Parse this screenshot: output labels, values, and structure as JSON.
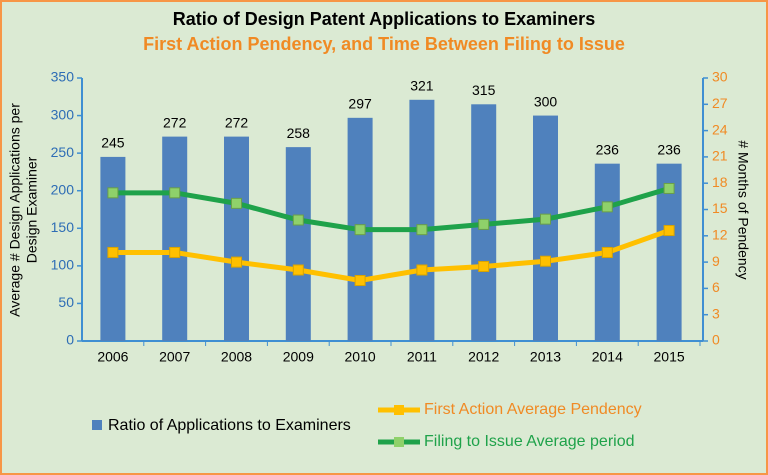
{
  "chart_data": {
    "type": "bar-line",
    "title": "Ratio of Design Patent Applications to Examiners",
    "subtitle": "First Action Pendency, and Time Between Filing to Issue",
    "y_label": [
      "Average # Design Applications per",
      "Design Examiner"
    ],
    "y2_label": "# Months of Pendency",
    "categories": [
      "2006",
      "2007",
      "2008",
      "2009",
      "2010",
      "2011",
      "2012",
      "2013",
      "2014",
      "2015"
    ],
    "ylim": [
      0,
      350
    ],
    "yticks": [
      0,
      50,
      100,
      150,
      200,
      250,
      300,
      350
    ],
    "y2lim": [
      0,
      30
    ],
    "y2ticks": [
      0,
      3,
      6,
      9,
      12,
      15,
      18,
      21,
      24,
      27,
      30
    ],
    "series": [
      {
        "name": "Ratio of Applications to Examiners",
        "kind": "bar",
        "color": "#4f81bd",
        "values": [
          245,
          272,
          272,
          258,
          297,
          321,
          315,
          300,
          236,
          236
        ]
      },
      {
        "name": "First Action Average Pendency",
        "kind": "line",
        "axis": "y2",
        "color": "#ffc000",
        "values": [
          10.1,
          10.1,
          9.0,
          8.1,
          6.9,
          8.1,
          8.5,
          9.1,
          10.1,
          12.6
        ]
      },
      {
        "name": "Filing to Issue Average period",
        "kind": "line",
        "axis": "y2",
        "color": "#1fa24a",
        "values": [
          16.9,
          16.9,
          15.7,
          13.8,
          12.7,
          12.7,
          13.3,
          13.9,
          15.3,
          17.4
        ]
      }
    ]
  }
}
